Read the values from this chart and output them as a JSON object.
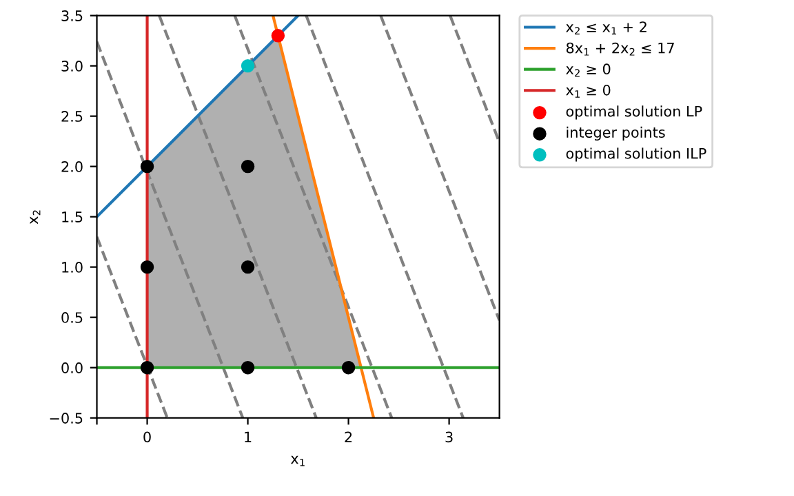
{
  "chart_data": {
    "type": "line",
    "xlabel": "x$_{1}$",
    "ylabel": "x$_{2}$",
    "xlim": [
      -0.5,
      3.5
    ],
    "ylim": [
      -0.5,
      3.5
    ],
    "xticks": [
      {
        "value": -0.5,
        "label": null
      },
      0,
      1,
      2,
      3
    ],
    "yticks": [
      {
        "value": -0.5,
        "label": "−0.5"
      },
      {
        "value": 0,
        "label": "0.0"
      },
      0.5,
      {
        "value": 1,
        "label": "1.0"
      },
      1.5,
      {
        "value": 2,
        "label": "2.0"
      },
      2.5,
      {
        "value": 3,
        "label": "3.0"
      },
      3.5
    ],
    "grid": false,
    "legend": "top right",
    "series": [
      {
        "type": "area",
        "color": "#b0b0b0",
        "x": [
          0,
          1.3,
          2.125
        ],
        "values": [
          2,
          3.3,
          0
        ]
      },
      {
        "type": "line",
        "color": "#808080",
        "line_style": "dashed",
        "x": [
          -0.5,
          0.2
        ],
        "values": [
          1.3,
          -0.5
        ]
      },
      {
        "type": "line",
        "color": "#808080",
        "line_style": "dashed",
        "x": [
          -0.5,
          0.95
        ],
        "values": [
          3.24,
          -0.5
        ]
      },
      {
        "type": "line",
        "color": "#808080",
        "line_style": "dashed",
        "x": [
          0.12,
          1.68
        ],
        "values": [
          3.5,
          -0.5
        ]
      },
      {
        "type": "line",
        "color": "#808080",
        "line_style": "dashed",
        "x": [
          0.87,
          2.43
        ],
        "values": [
          3.5,
          -0.5
        ]
      },
      {
        "type": "line",
        "color": "#808080",
        "line_style": "dashed",
        "x": [
          1.58,
          3.14
        ],
        "values": [
          3.5,
          -0.5
        ]
      },
      {
        "type": "line",
        "color": "#808080",
        "line_style": "dashed",
        "x": [
          2.32,
          3.5
        ],
        "values": [
          3.5,
          0.47
        ]
      },
      {
        "type": "line",
        "color": "#808080",
        "line_style": "dashed",
        "x": [
          3.01,
          3.5
        ],
        "values": [
          3.5,
          2.24
        ]
      },
      {
        "name": "x$_{2}$ ≤ x$_{1}$ + 2",
        "color": "#1f77b4",
        "x": [
          -0.5,
          1.5
        ],
        "values": [
          1.5,
          3.5
        ]
      },
      {
        "name": "8x$_{1}$ + 2x$_{2}$ ≤ 17",
        "color": "#ff7f0e",
        "x": [
          1.25,
          2.25
        ],
        "values": [
          3.5,
          -0.5
        ]
      },
      {
        "name": "x$_{2}$ ≥ 0",
        "color": "#2ca02c",
        "x": [
          -0.5,
          3.5
        ],
        "values": [
          0,
          0
        ]
      },
      {
        "name": "x$_{1}$ ≥ 0",
        "color": "#d62728",
        "x": [
          0,
          0
        ],
        "values": [
          -0.5,
          3.5
        ]
      },
      {
        "type": "scatter",
        "name": "optimal solution LP",
        "color": "#ff0000",
        "marker": "circle",
        "x": [
          1.3
        ],
        "values": [
          3.3
        ]
      },
      {
        "type": "scatter",
        "name": "integer points",
        "color": "#000000",
        "marker": "circle",
        "x": [
          0,
          0,
          0,
          1,
          1,
          1,
          2
        ],
        "values": [
          0,
          1,
          2,
          0,
          1,
          2,
          0
        ]
      },
      {
        "type": "scatter",
        "name": "optimal solution ILP",
        "color": "#00bfbf",
        "marker": "circle",
        "x": [
          1
        ],
        "values": [
          3
        ]
      }
    ]
  }
}
